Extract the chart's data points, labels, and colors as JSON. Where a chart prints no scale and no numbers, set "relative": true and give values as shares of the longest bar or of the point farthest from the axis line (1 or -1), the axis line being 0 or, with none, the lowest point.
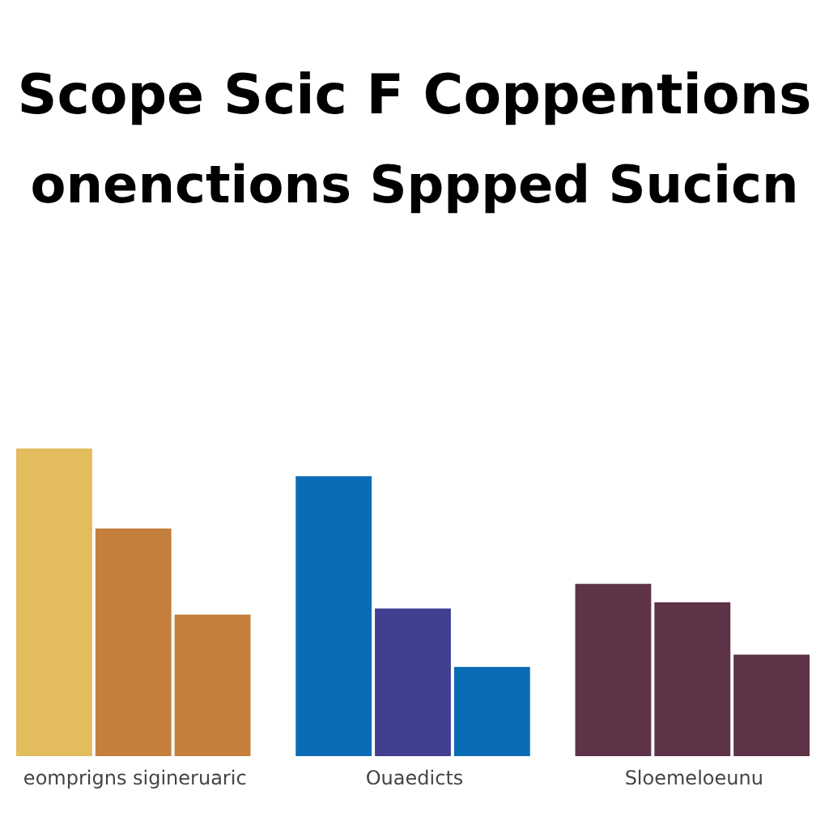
{
  "chart_data": {
    "type": "bar",
    "title": "Scope Scic F Coppentions",
    "subtitle": "onenctions Sppped Sucicn",
    "relative": true,
    "categories": [
      "eomprigns sigineruaric",
      "Ouaedicts",
      "Sloemeloeunu"
    ],
    "series": [
      {
        "colors": [
          "#e3bc5e",
          "#0a6cb5",
          "#5e3247"
        ],
        "values": [
          1,
          0.91,
          0.56
        ]
      },
      {
        "colors": [
          "#c47f3c",
          "#413f92",
          "#5e3247"
        ],
        "values": [
          0.74,
          0.48,
          0.5
        ]
      },
      {
        "colors": [
          "#c47f3c",
          "#0a6cb5",
          "#5e3247"
        ],
        "values": [
          0.46,
          0.29,
          0.33
        ]
      }
    ]
  }
}
